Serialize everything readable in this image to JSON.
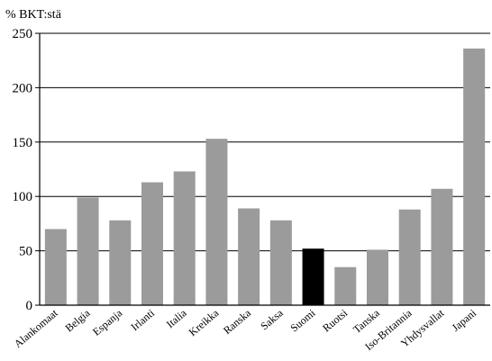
{
  "chart_data": {
    "type": "bar",
    "ylabel": "% BKT:stä",
    "xlabel": "",
    "ylim": [
      0,
      250
    ],
    "yticks": [
      0,
      50,
      100,
      150,
      200,
      250
    ],
    "grid": "horizontal",
    "categories": [
      "Alankomaat",
      "Belgia",
      "Espanja",
      "Irlanti",
      "Italia",
      "Kreikka",
      "Ranska",
      "Saksa",
      "Suomi",
      "Ruotsi",
      "Tanska",
      "Iso-Britannia",
      "Yhdysvallat",
      "Japani"
    ],
    "values": [
      70,
      99,
      78,
      113,
      123,
      153,
      89,
      78,
      52,
      35,
      51,
      88,
      107,
      236
    ],
    "highlight_category": "Suomi",
    "colors": {
      "bar": "#9b9b9b",
      "highlight": "#000000",
      "axis": "#000000",
      "grid": "#000000"
    }
  }
}
